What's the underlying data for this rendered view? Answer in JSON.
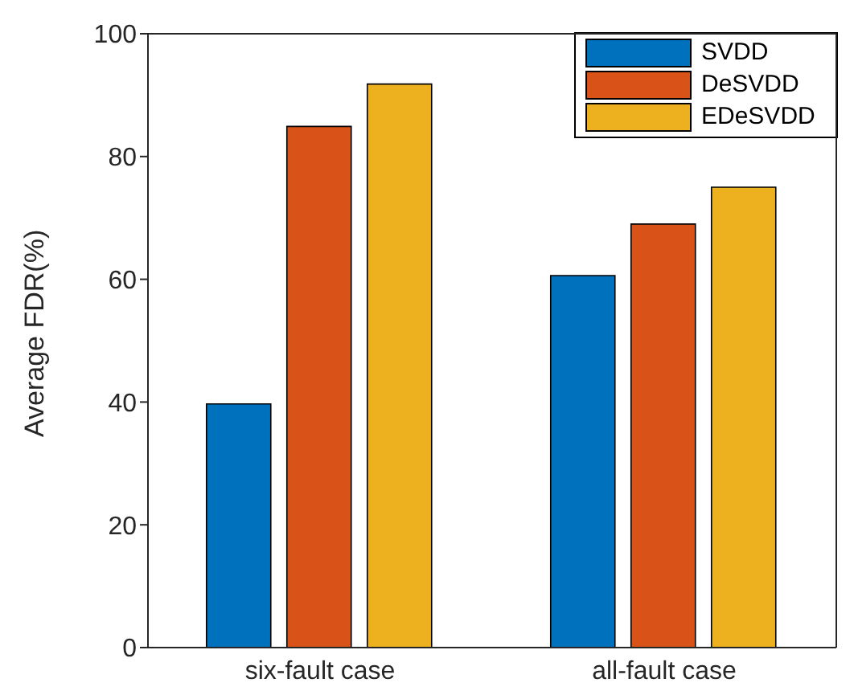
{
  "chart_data": {
    "type": "bar",
    "categories": [
      "six-fault case",
      "all-fault case"
    ],
    "series": [
      {
        "name": "SVDD",
        "color": "#0072bd",
        "values": [
          39.7,
          60.6
        ]
      },
      {
        "name": "DeSVDD",
        "color": "#d95319",
        "values": [
          84.9,
          69.0
        ]
      },
      {
        "name": "EDeSVDD",
        "color": "#edb120",
        "values": [
          91.8,
          75.0
        ]
      }
    ],
    "ylabel": "Average FDR(%)",
    "ylim": [
      0,
      100
    ],
    "yticks": [
      0,
      20,
      40,
      60,
      80,
      100
    ],
    "grid": false,
    "legend": "top right"
  }
}
